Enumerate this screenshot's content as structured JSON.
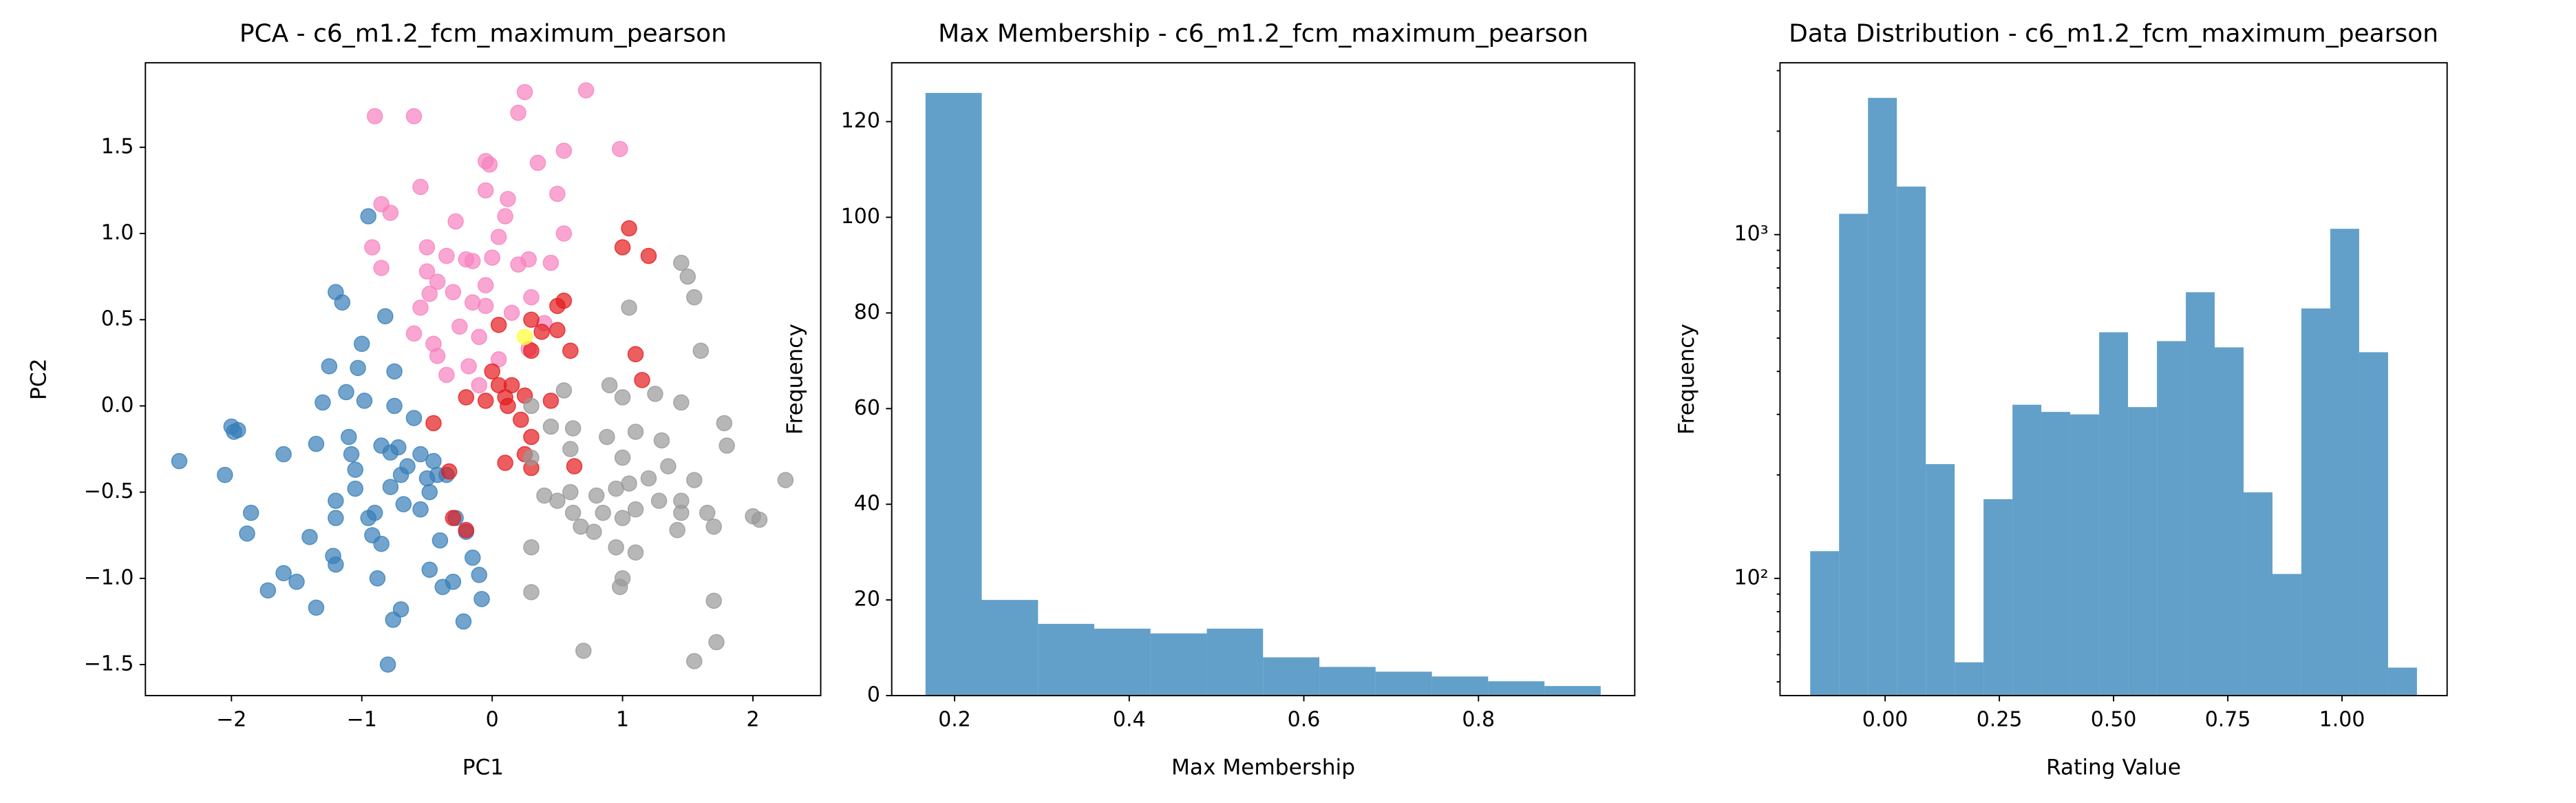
{
  "chart_data": [
    {
      "type": "scatter",
      "title": "PCA - c6_m1.2_fcm_maximum_pearson",
      "xlabel": "PC1",
      "ylabel": "PC2",
      "xlim": [
        -2.66,
        2.52
      ],
      "ylim": [
        -1.68,
        1.99
      ],
      "xticks": [
        {
          "value": -2,
          "label": "−2"
        },
        {
          "value": -1,
          "label": "−1"
        },
        0,
        1,
        2
      ],
      "yticks": [
        {
          "value": -1.5,
          "label": "−1.5"
        },
        {
          "value": -1,
          "label": "−1.0"
        },
        {
          "value": -0.5,
          "label": "−0.5"
        },
        {
          "value": 0,
          "label": "0.0"
        },
        0.5,
        {
          "value": 1,
          "label": "1.0"
        },
        1.5
      ],
      "series": [
        {
          "color": "#377eb8",
          "x": [
            -2.4,
            -2.05,
            -2.0,
            -1.98,
            -1.95,
            -1.85,
            -1.88,
            -1.72,
            -1.6,
            -1.6,
            -1.5,
            -1.4,
            -1.35,
            -1.35,
            -1.3,
            -1.25,
            -1.2,
            -1.2,
            -1.22,
            -1.2,
            -1.15,
            -1.2,
            -1.12,
            -1.1,
            -1.08,
            -1.05,
            -1.05,
            -1.03,
            -1.0,
            -0.98,
            -0.95,
            -0.95,
            -0.92,
            -0.9,
            -0.88,
            -0.85,
            -0.85,
            -0.82,
            -0.8,
            -0.78,
            -0.78,
            -0.76,
            -0.75,
            -0.72,
            -0.7,
            -0.7,
            -0.68,
            -0.65,
            -0.6,
            -0.55,
            -0.55,
            -0.5,
            -0.48,
            -0.48,
            -0.45,
            -0.42,
            -0.4,
            -0.38,
            -0.35,
            -0.3,
            -0.28,
            -0.22,
            -0.2,
            -0.1,
            -0.08,
            -0.15,
            -0.75
          ],
          "y": [
            -0.32,
            -0.4,
            -0.12,
            -0.15,
            -0.14,
            -0.62,
            -0.74,
            -1.07,
            -0.97,
            -0.28,
            -1.02,
            -0.76,
            -0.22,
            -1.17,
            0.02,
            0.23,
            -0.55,
            -0.65,
            -0.87,
            -0.92,
            0.6,
            0.66,
            0.08,
            -0.18,
            -0.28,
            -0.37,
            -0.48,
            0.22,
            0.36,
            0.03,
            1.1,
            -0.65,
            -0.75,
            -0.62,
            -1.0,
            -0.23,
            -0.8,
            0.52,
            -1.5,
            -0.27,
            -0.47,
            -1.24,
            0.2,
            -0.24,
            -1.18,
            -0.4,
            -0.57,
            -0.35,
            -0.07,
            -0.28,
            -0.6,
            -0.42,
            -0.5,
            -0.95,
            -0.32,
            -0.4,
            -0.78,
            -1.05,
            -0.4,
            -1.02,
            -0.65,
            -1.25,
            -0.73,
            -0.98,
            -1.12,
            -0.88,
            0.0
          ]
        },
        {
          "color": "#f781bf",
          "x": [
            -0.9,
            -0.6,
            0.2,
            0.25,
            0.72,
            0.98,
            -0.05,
            -0.02,
            0.35,
            0.55,
            0.5,
            0.12,
            -0.55,
            -0.05,
            -0.92,
            -0.85,
            -0.78,
            -0.28,
            0.1,
            0.55,
            -0.85,
            -0.5,
            -0.42,
            -0.5,
            -0.35,
            -0.2,
            -0.15,
            0.0,
            0.05,
            0.2,
            0.28,
            0.45,
            -0.55,
            -0.48,
            -0.3,
            -0.15,
            -0.05,
            0.15,
            0.3,
            -0.6,
            -0.45,
            -0.42,
            -0.25,
            -0.1,
            0.05,
            -0.35,
            -0.1,
            -0.18,
            0.28,
            -0.05,
            0.4
          ],
          "y": [
            1.68,
            1.68,
            1.7,
            1.82,
            1.83,
            1.49,
            1.42,
            1.4,
            1.41,
            1.48,
            1.23,
            1.2,
            1.27,
            1.25,
            0.92,
            1.17,
            1.12,
            1.07,
            1.1,
            1.0,
            0.8,
            0.78,
            0.72,
            0.92,
            0.87,
            0.85,
            0.84,
            0.86,
            0.98,
            0.82,
            0.85,
            0.83,
            0.57,
            0.65,
            0.66,
            0.6,
            0.58,
            0.54,
            0.63,
            0.42,
            0.36,
            0.29,
            0.46,
            0.4,
            0.27,
            0.18,
            0.12,
            0.23,
            0.33,
            0.7,
            0.48
          ]
        },
        {
          "color": "#e41a1c",
          "x": [
            1.05,
            1.0,
            1.2,
            0.55,
            0.5,
            0.3,
            0.38,
            0.5,
            0.05,
            0.3,
            0.6,
            0.0,
            0.05,
            0.15,
            -0.2,
            -0.05,
            0.1,
            0.25,
            0.45,
            0.12,
            0.22,
            1.1,
            1.15,
            -0.45,
            0.3,
            0.25,
            0.3,
            0.1,
            0.63,
            -0.3,
            -0.2,
            -0.33
          ],
          "y": [
            1.03,
            0.92,
            0.87,
            0.61,
            0.58,
            0.5,
            0.43,
            0.44,
            0.47,
            0.32,
            0.32,
            0.2,
            0.12,
            0.12,
            0.05,
            0.03,
            0.05,
            0.06,
            0.03,
            0.0,
            -0.08,
            0.3,
            0.15,
            -0.1,
            -0.18,
            -0.28,
            -0.36,
            -0.33,
            -0.35,
            -0.65,
            -0.72,
            -0.38
          ]
        },
        {
          "color": "#999999",
          "x": [
            1.45,
            1.5,
            1.55,
            1.05,
            1.6,
            0.55,
            0.9,
            1.0,
            1.25,
            1.45,
            0.3,
            0.45,
            0.62,
            0.88,
            1.1,
            1.3,
            1.78,
            1.8,
            0.3,
            0.6,
            1.0,
            1.35,
            1.55,
            0.4,
            0.6,
            0.8,
            0.95,
            1.05,
            1.2,
            1.45,
            1.65,
            0.3,
            0.5,
            0.62,
            0.68,
            0.78,
            0.85,
            1.0,
            1.1,
            1.28,
            1.45,
            1.42,
            1.7,
            0.95,
            1.1,
            1.0,
            0.98,
            0.3,
            1.7,
            1.72,
            1.55,
            0.7,
            2.0,
            2.05,
            2.25
          ],
          "y": [
            0.83,
            0.75,
            0.63,
            0.57,
            0.32,
            0.09,
            0.12,
            0.05,
            0.07,
            0.02,
            0.0,
            -0.12,
            -0.13,
            -0.18,
            -0.15,
            -0.2,
            -0.1,
            -0.23,
            -0.3,
            -0.25,
            -0.3,
            -0.35,
            -0.43,
            -0.52,
            -0.5,
            -0.52,
            -0.48,
            -0.45,
            -0.42,
            -0.55,
            -0.62,
            -0.82,
            -0.55,
            -0.62,
            -0.7,
            -0.73,
            -0.62,
            -0.65,
            -0.6,
            -0.55,
            -0.62,
            -0.72,
            -0.7,
            -0.82,
            -0.85,
            -1.0,
            -1.05,
            -1.08,
            -1.13,
            -1.37,
            -1.48,
            -1.42,
            -0.64,
            -0.66,
            -0.43
          ]
        },
        {
          "color": "#ffff33",
          "x": [
            0.25
          ],
          "y": [
            0.4
          ]
        }
      ]
    },
    {
      "type": "histogram",
      "title": "Max Membership - c6_m1.2_fcm_maximum_pearson",
      "xlabel": "Max Membership",
      "ylabel": "Frequency",
      "color": "#1f77b4",
      "xlim": [
        0.128,
        0.979
      ],
      "ylim": [
        0,
        132.3
      ],
      "xticks": [
        0.2,
        0.4,
        0.6,
        0.8
      ],
      "yticks": [
        0,
        20,
        40,
        60,
        80,
        100,
        120
      ],
      "bins": [
        0.1667,
        0.2311,
        0.2956,
        0.36,
        0.4244,
        0.4889,
        0.5533,
        0.6178,
        0.6822,
        0.7467,
        0.8111,
        0.8756,
        0.94
      ],
      "values": [
        126,
        20,
        15,
        14,
        13,
        14,
        8,
        6,
        5,
        4,
        3,
        2
      ]
    },
    {
      "type": "histogram",
      "title": "Data Distribution - c6_m1.2_fcm_maximum_pearson",
      "xlabel": "Rating Value",
      "ylabel": "Frequency",
      "color": "#1f77b4",
      "yscale": "log",
      "xlim": [
        -0.23,
        1.23
      ],
      "ylim": [
        45.6,
        3162
      ],
      "xticks": [
        {
          "value": 0,
          "label": "0.00"
        },
        {
          "value": 0.25,
          "label": "0.25"
        },
        {
          "value": 0.5,
          "label": "0.50"
        },
        {
          "value": 0.75,
          "label": "0.75"
        },
        {
          "value": 1,
          "label": "1.00"
        }
      ],
      "yticks": [
        {
          "value": 100,
          "label": "10²"
        },
        {
          "value": 1000,
          "label": "10³"
        }
      ],
      "yminorticks": [
        50,
        60,
        70,
        80,
        90,
        200,
        300,
        400,
        500,
        600,
        700,
        800,
        900,
        2000,
        3000
      ],
      "bins": [
        -0.164,
        -0.1008,
        -0.0375,
        0.0257,
        0.089,
        0.1522,
        0.2154,
        0.2787,
        0.3419,
        0.4051,
        0.4684,
        0.5316,
        0.5949,
        0.6581,
        0.7213,
        0.7846,
        0.8478,
        0.911,
        0.9743,
        1.0375,
        1.1008,
        1.164
      ],
      "values": [
        120,
        1150,
        2500,
        1380,
        215,
        57,
        170,
        320,
        305,
        300,
        520,
        315,
        490,
        680,
        470,
        178,
        103,
        610,
        1040,
        455,
        55
      ]
    }
  ]
}
